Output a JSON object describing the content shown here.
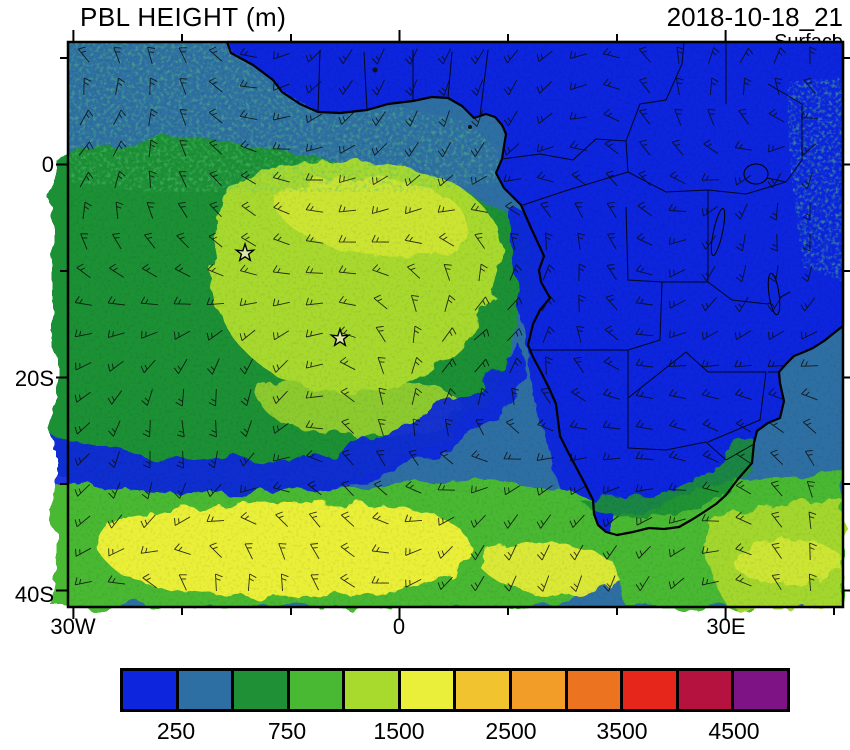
{
  "chart_data": {
    "type": "heatmap",
    "title": "PBL HEIGHT (m)",
    "datetime": "2018-10-18_21",
    "level": "Surface",
    "units": "m",
    "projection": "lat-lon map of southern Africa and the South Atlantic",
    "x_axis": {
      "tick_labels": [
        "30W",
        "0",
        "30E"
      ],
      "lon_range": [
        -30.5,
        40.8
      ],
      "minor_ticks_every_deg": 10
    },
    "y_axis": {
      "tick_labels": [
        "0",
        "20S",
        "40S"
      ],
      "lat_range": [
        11.5,
        -41.5
      ],
      "minor_ticks_every_deg": 10
    },
    "colorbar": {
      "orientation": "horizontal",
      "cell_colors": [
        "#0c25dd",
        "#2e6fa3",
        "#1f9035",
        "#49b833",
        "#a8d92d",
        "#eaef39",
        "#f1c42f",
        "#f19d28",
        "#ec7420",
        "#e6261b",
        "#b5123f",
        "#7e1386"
      ],
      "boundary_values": [
        250,
        500,
        750,
        1000,
        1500,
        2000,
        2500,
        3000,
        3500,
        4000,
        4500
      ],
      "shown_labels": [
        "250",
        "750",
        "1500",
        "2500",
        "3500",
        "4500"
      ]
    },
    "overlays": {
      "wind_barbs": true,
      "coastlines": true,
      "country_borders": true,
      "lakes": true,
      "star_markers": [
        {
          "lon": -14,
          "lat": -8
        },
        {
          "lon": -6,
          "lat": -16
        }
      ]
    },
    "field_regions": [
      {
        "area": "African continental interior (21Z, evening)",
        "pbl_height_m": "below 250"
      },
      {
        "area": "Benguela coastal strip and SE Atlantic blue tongue",
        "pbl_height_m": "250-500"
      },
      {
        "area": "NE tropical Atlantic band (upper left)",
        "pbl_height_m": "250-750 mixed"
      },
      {
        "area": "central South Atlantic plateau around star markers",
        "pbl_height_m": "750-1500"
      },
      {
        "area": "brightest mid-Atlantic core NE of first star",
        "pbl_height_m": "1500-2000"
      },
      {
        "area": "southern ocean band 25S-40S with yellow core",
        "pbl_height_m": "750-2000"
      },
      {
        "area": "SW Indian Ocean corner and SE South Africa coast",
        "pbl_height_m": "750-1500"
      }
    ]
  }
}
